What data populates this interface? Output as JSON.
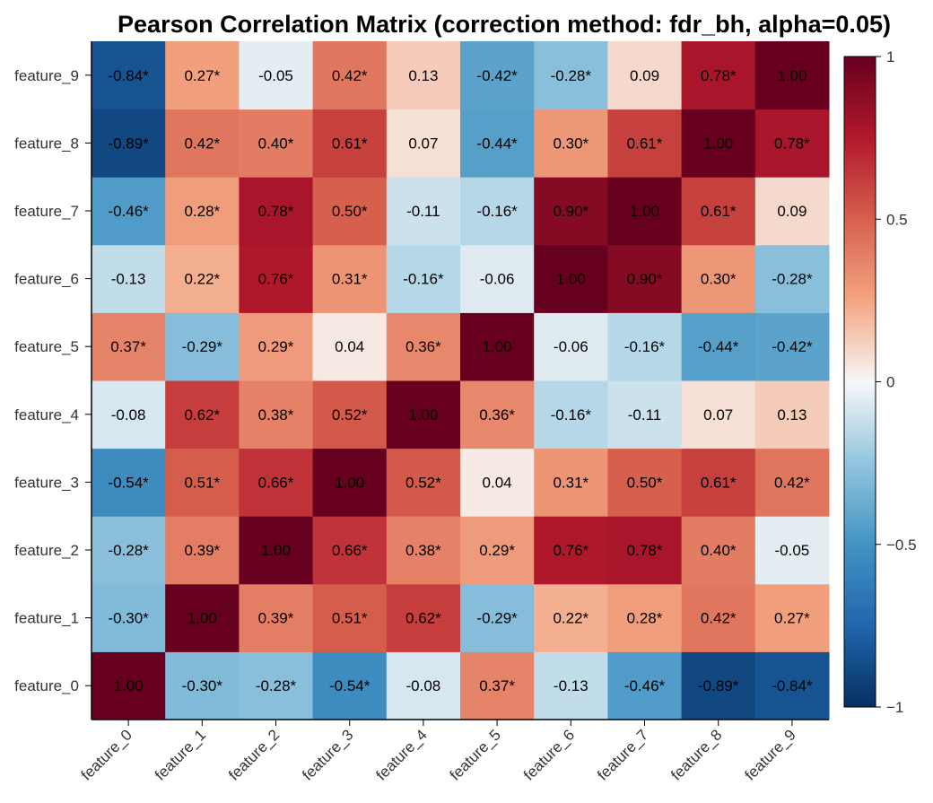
{
  "chart_data": {
    "type": "heatmap",
    "title": "Pearson Correlation Matrix (correction method: fdr_bh, alpha=0.05)",
    "x_labels": [
      "feature_0",
      "feature_1",
      "feature_2",
      "feature_3",
      "feature_4",
      "feature_5",
      "feature_6",
      "feature_7",
      "feature_8",
      "feature_9"
    ],
    "y_labels": [
      "feature_0",
      "feature_1",
      "feature_2",
      "feature_3",
      "feature_4",
      "feature_5",
      "feature_6",
      "feature_7",
      "feature_8",
      "feature_9"
    ],
    "y_order": "feature_0 at bottom, feature_9 at top",
    "matrix": [
      [
        1.0,
        -0.3,
        -0.28,
        -0.54,
        -0.08,
        0.37,
        -0.13,
        -0.46,
        -0.89,
        -0.84
      ],
      [
        -0.3,
        1.0,
        0.39,
        0.51,
        0.62,
        -0.29,
        0.22,
        0.28,
        0.42,
        0.27
      ],
      [
        -0.28,
        0.39,
        1.0,
        0.66,
        0.38,
        0.29,
        0.76,
        0.78,
        0.4,
        -0.05
      ],
      [
        -0.54,
        0.51,
        0.66,
        1.0,
        0.52,
        0.04,
        0.31,
        0.5,
        0.61,
        0.42
      ],
      [
        -0.08,
        0.62,
        0.38,
        0.52,
        1.0,
        0.36,
        -0.16,
        -0.11,
        0.07,
        0.13
      ],
      [
        0.37,
        -0.29,
        0.29,
        0.04,
        0.36,
        1.0,
        -0.06,
        -0.16,
        -0.44,
        -0.42
      ],
      [
        -0.13,
        0.22,
        0.76,
        0.31,
        -0.16,
        -0.06,
        1.0,
        0.9,
        0.3,
        -0.28
      ],
      [
        -0.46,
        0.28,
        0.78,
        0.5,
        -0.11,
        -0.16,
        0.9,
        1.0,
        0.61,
        0.09
      ],
      [
        -0.89,
        0.42,
        0.4,
        0.61,
        0.07,
        -0.44,
        0.3,
        0.61,
        1.0,
        0.78
      ],
      [
        -0.84,
        0.27,
        -0.05,
        0.42,
        0.13,
        -0.42,
        -0.28,
        0.09,
        0.78,
        1.0
      ]
    ],
    "significant": [
      [
        false,
        true,
        true,
        true,
        false,
        true,
        false,
        true,
        true,
        true
      ],
      [
        true,
        false,
        true,
        true,
        true,
        true,
        true,
        true,
        true,
        true
      ],
      [
        true,
        true,
        false,
        true,
        true,
        true,
        true,
        true,
        true,
        false
      ],
      [
        true,
        true,
        true,
        false,
        true,
        false,
        true,
        true,
        true,
        true
      ],
      [
        false,
        true,
        true,
        true,
        false,
        true,
        true,
        false,
        false,
        false
      ],
      [
        true,
        true,
        true,
        false,
        true,
        false,
        false,
        true,
        true,
        true
      ],
      [
        false,
        true,
        true,
        true,
        true,
        false,
        false,
        true,
        true,
        true
      ],
      [
        true,
        true,
        true,
        true,
        false,
        true,
        true,
        false,
        true,
        false
      ],
      [
        true,
        true,
        true,
        true,
        false,
        true,
        true,
        true,
        false,
        true
      ],
      [
        true,
        true,
        false,
        true,
        false,
        true,
        true,
        false,
        true,
        false
      ]
    ],
    "significance_marker": "*",
    "colormap": "RdBu_r",
    "vmin": -1,
    "vmax": 1,
    "colorbar_ticks": [
      {
        "value": 1,
        "label": "1"
      },
      {
        "value": 0.5,
        "label": "0.5"
      },
      {
        "value": 0,
        "label": "0"
      },
      {
        "value": -0.5,
        "label": "−0.5"
      },
      {
        "value": -1,
        "label": "−1"
      }
    ]
  }
}
